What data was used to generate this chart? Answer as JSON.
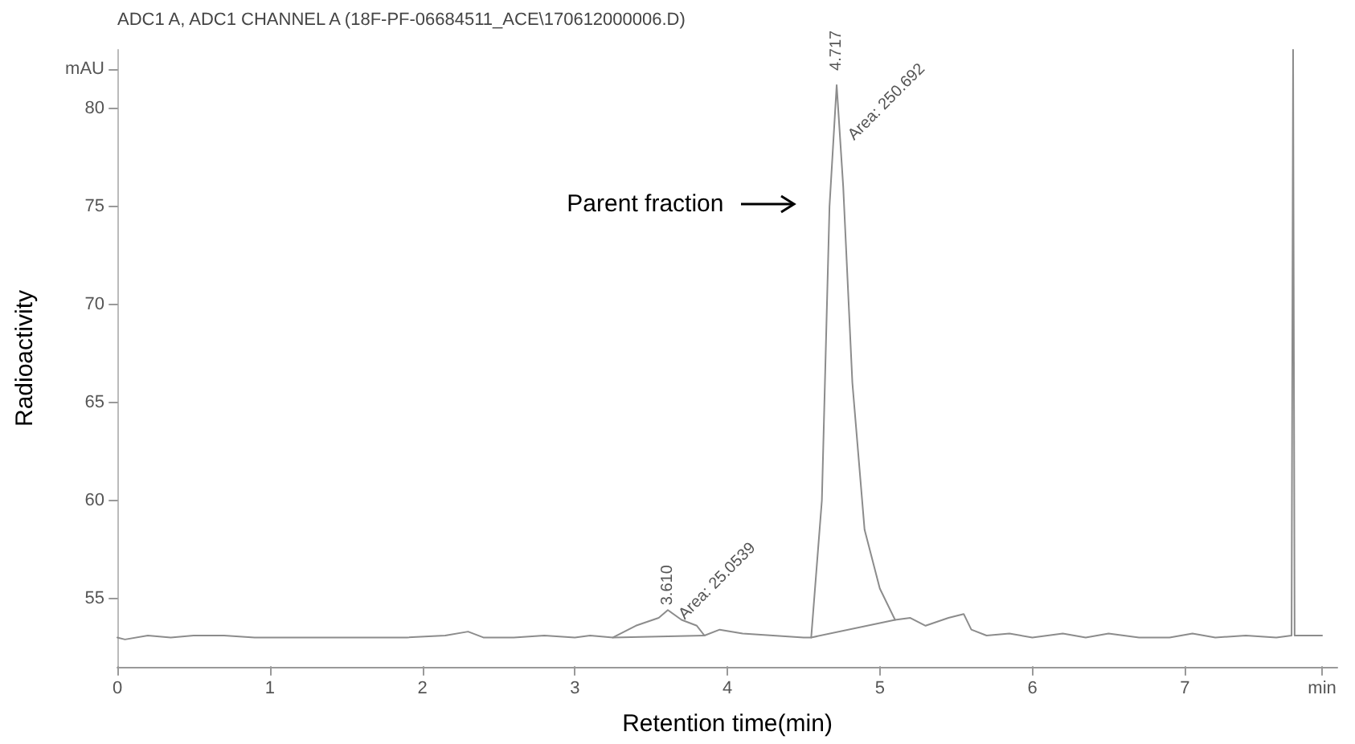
{
  "chart_data": {
    "type": "line",
    "title": "ADC1 A, ADC1 CHANNEL A (18F-PF-06684511_ACE\\170612000006.D)",
    "xlabel": "Retention time(min)",
    "ylabel": "Radioactivity",
    "xlim": [
      0,
      8
    ],
    "xticks": [
      0,
      1,
      2,
      3,
      4,
      5,
      6,
      7,
      {
        "value": 7.9,
        "label": "min"
      }
    ],
    "ylim": [
      51.5,
      83
    ],
    "yticks": [
      55,
      60,
      65,
      70,
      75,
      80,
      {
        "value": 82,
        "label": "mAU"
      }
    ],
    "grid": false,
    "marker": "none",
    "line_style": "solid",
    "series": [
      {
        "color": "#8c8c8c",
        "x": [
          0,
          0.05,
          0.2,
          0.35,
          0.5,
          0.7,
          0.9,
          1.2,
          1.6,
          1.9,
          2.15,
          2.3,
          2.4,
          2.6,
          2.8,
          3.0,
          3.1,
          3.25,
          3.4,
          3.55,
          3.61,
          3.7,
          3.8,
          3.85,
          3.95,
          4.1,
          4.3,
          4.5,
          4.55,
          4.62,
          4.67,
          4.717,
          4.76,
          4.82,
          4.9,
          5.0,
          5.1,
          5.2,
          5.3,
          5.45,
          5.55,
          5.6,
          5.7,
          5.85,
          6.0,
          6.2,
          6.35,
          6.5,
          6.7,
          6.9,
          7.05,
          7.2,
          7.4,
          7.6,
          7.7,
          7.71,
          7.72,
          7.9
        ],
        "values": [
          53.0,
          52.9,
          53.1,
          53.0,
          53.1,
          53.1,
          53.0,
          53.0,
          53.0,
          53.0,
          53.1,
          53.3,
          53.0,
          53.0,
          53.1,
          53.0,
          53.1,
          53.0,
          53.6,
          54.0,
          54.4,
          53.9,
          53.6,
          53.1,
          53.4,
          53.2,
          53.1,
          53.0,
          53.0,
          60,
          75,
          81.2,
          76,
          66,
          58.5,
          55.5,
          53.9,
          54.0,
          53.6,
          54.0,
          54.2,
          53.4,
          53.1,
          53.2,
          53.0,
          53.2,
          53.0,
          53.2,
          53.0,
          53.0,
          53.2,
          53.0,
          53.1,
          53.0,
          53.1,
          83,
          53.1,
          53.1
        ]
      },
      {
        "color": "#8c8c8c",
        "x": [
          3.25,
          3.85
        ],
        "values": [
          53.0,
          53.1
        ]
      },
      {
        "color": "#8c8c8c",
        "x": [
          4.55,
          5.1
        ],
        "values": [
          53.0,
          53.9
        ]
      }
    ],
    "annotations": [
      {
        "text": "4.717",
        "x": 4.717,
        "y": 81.2
      },
      {
        "text": "Area: 250.692",
        "x": 4.75,
        "y": 78.5
      },
      {
        "text": "3.610",
        "x": 3.61,
        "y": 54.4
      },
      {
        "text": "Area: 25.0539",
        "x": 3.66,
        "y": 54.2
      },
      "Parent fraction"
    ]
  }
}
